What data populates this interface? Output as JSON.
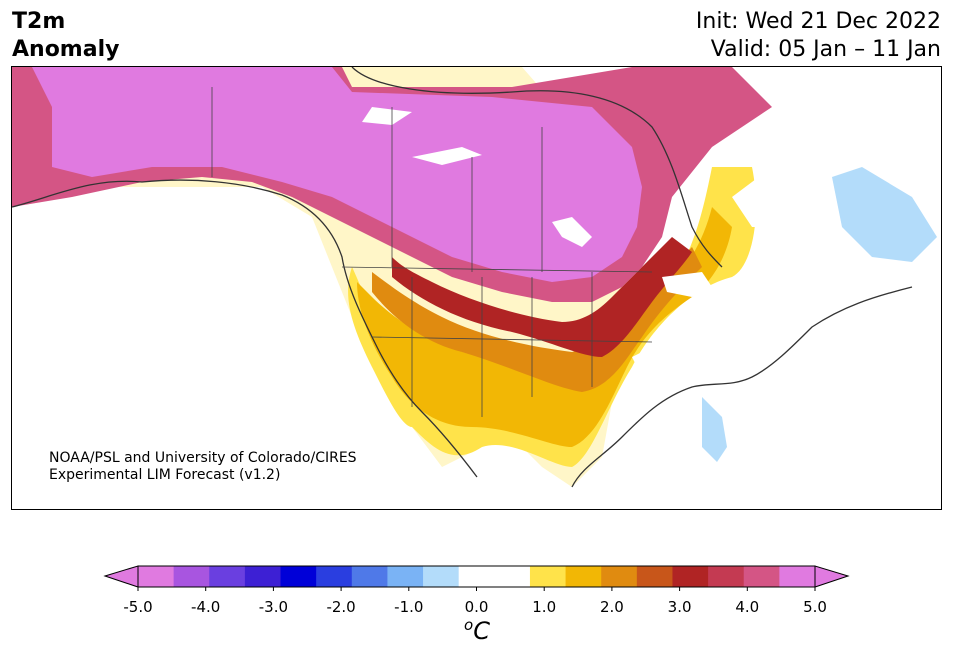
{
  "title": {
    "line1": "T2m",
    "line2": "Anomaly"
  },
  "dates": {
    "init": "Init: Wed 21 Dec 2022",
    "valid": "Valid: 05 Jan – 11 Jan"
  },
  "credit": {
    "line1": "NOAA/PSL and University of Colorado/CIRES",
    "line2": "Experimental LIM Forecast (v1.2)"
  },
  "colorbar": {
    "unit_base": "C",
    "unit_sup": "o",
    "ticks": [
      "-5.0",
      "-4.0",
      "-3.0",
      "-2.0",
      "-1.0",
      "0.0",
      "1.0",
      "2.0",
      "3.0",
      "4.0",
      "5.0"
    ],
    "colors": [
      "#e07ae0",
      "#a855e0",
      "#6a3fe0",
      "#3d20d4",
      "#0000d8",
      "#2a3ee0",
      "#4f79e8",
      "#7ab3f5",
      "#b3dcfa",
      "#ffffff",
      "#ffffff",
      "#ffe34a",
      "#f2b705",
      "#e08b10",
      "#c8561a",
      "#b02424",
      "#c43a52",
      "#d45585",
      "#e07ae0"
    ],
    "under_color": "#e07ae0",
    "over_color": "#e07ae0"
  },
  "map": {
    "variable": "2-m temperature anomaly",
    "unit": "°C",
    "regions": [
      {
        "name": "western and central Canada",
        "anomaly_level": ">5",
        "color": "#e07ae0"
      },
      {
        "name": "northern Great Plains",
        "anomaly_level": ">5",
        "color": "#e07ae0"
      },
      {
        "name": "central Plains",
        "anomaly_level": "3-4",
        "color": "#c43a52"
      },
      {
        "name": "western US",
        "anomaly_level": "1-2",
        "color": "#f2b705"
      },
      {
        "name": "southeastern US coast",
        "anomaly_level": "-1-0",
        "color": "#b3dcfa"
      },
      {
        "name": "Labrador",
        "anomaly_level": "-1-0",
        "color": "#b3dcfa"
      }
    ]
  }
}
